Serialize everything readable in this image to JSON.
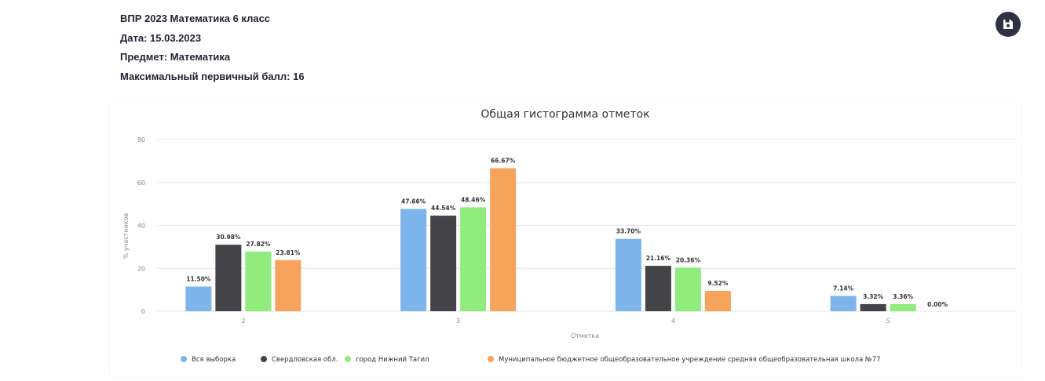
{
  "header": {
    "title": "ВПР 2023 Математика 6 класс",
    "date": "Дата: 15.03.2023",
    "subject": "Предмет: Математика",
    "max_score": "Максимальный первичный балл: 16"
  },
  "save_icon": "floppy-disk-icon",
  "colors": {
    "series": [
      "#7cb5ec",
      "#434348",
      "#90ed7d",
      "#f7a35c"
    ],
    "grid": "#e6e6e6",
    "save_button": "#2e3242"
  },
  "chart_data": {
    "type": "bar",
    "title": "Общая гистограмма отметок",
    "xlabel": "Отметка",
    "ylabel": "% участников",
    "ylim": [
      0,
      80
    ],
    "yticks": [
      0,
      20,
      40,
      60,
      80
    ],
    "categories": [
      "2",
      "3",
      "4",
      "5"
    ],
    "series": [
      {
        "name": "Вся выборка",
        "values": [
          11.5,
          47.66,
          33.7,
          7.14
        ],
        "labels": [
          "11.50%",
          "47.66%",
          "33.70%",
          "7.14%"
        ]
      },
      {
        "name": "Свердловская обл.",
        "values": [
          30.98,
          44.54,
          21.16,
          3.32
        ],
        "labels": [
          "30.98%",
          "44.54%",
          "21.16%",
          "3.32%"
        ]
      },
      {
        "name": "город Нижний Тагил",
        "values": [
          27.82,
          48.46,
          20.36,
          3.36
        ],
        "labels": [
          "27.82%",
          "48.46%",
          "20.36%",
          "3.36%"
        ]
      },
      {
        "name": "Муниципальное бюджетное общеобразовательное учреждение средняя общеобразовательная школа №77",
        "values": [
          23.81,
          66.67,
          9.52,
          0.0
        ],
        "labels": [
          "23.81%",
          "66.67%",
          "9.52%",
          "0.00%"
        ]
      }
    ],
    "grid": true,
    "legend_position": "bottom"
  }
}
